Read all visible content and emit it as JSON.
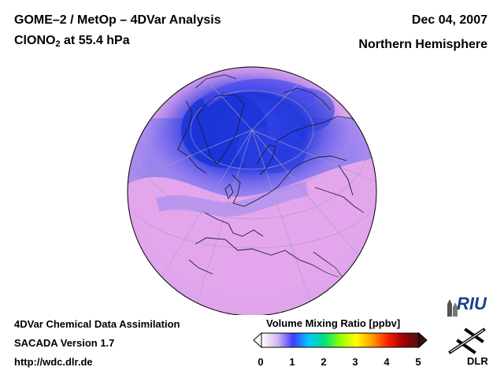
{
  "header": {
    "title_line1": "GOME–2 / MetOp – 4DVar Analysis",
    "title_line2_main": "ClONO",
    "title_line2_sub": "2",
    "title_line2_rest": " at 55.4 hPa",
    "date": "Dec 04, 2007",
    "region": "Northern Hemisphere"
  },
  "footer": {
    "line1": "4DVar Chemical Data Assimilation",
    "line2": "SACADA Version 1.7",
    "line3": "http://wdc.dlr.de"
  },
  "colorbar": {
    "title": "Volume Mixing Ratio [ppbv]",
    "ticks": [
      "0",
      "1",
      "2",
      "3",
      "4",
      "5"
    ],
    "range": [
      0,
      5
    ],
    "colors": [
      "#ffffff",
      "#d8b8f0",
      "#3d3dff",
      "#00c8ff",
      "#00e080",
      "#90ff00",
      "#ffff00",
      "#ffa000",
      "#ff2000",
      "#a00000",
      "#501010"
    ]
  },
  "logos": {
    "riu": "RIU",
    "dlr": "DLR"
  },
  "map": {
    "projection": "orthographic",
    "ocean_color": "#e3a6ec",
    "low_color": "#1e3ad8",
    "mid_color": "#7a6cf0"
  }
}
